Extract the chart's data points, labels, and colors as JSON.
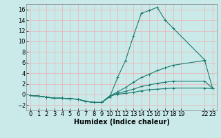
{
  "bg_color": "#caeaea",
  "grid_color": "#b0d8d8",
  "line_color": "#1a7a6e",
  "xlabel": "Humidex (Indice chaleur)",
  "xlabel_fontsize": 7,
  "tick_fontsize": 6,
  "ylim": [
    -3,
    17
  ],
  "xlim": [
    -0.5,
    23.5
  ],
  "yticks": [
    -2,
    0,
    2,
    4,
    6,
    8,
    10,
    12,
    14,
    16
  ],
  "xtick_positions": [
    0,
    1,
    2,
    3,
    4,
    5,
    6,
    7,
    8,
    9,
    10,
    11,
    12,
    13,
    14,
    15,
    16,
    17,
    18,
    19,
    22,
    23
  ],
  "xtick_labels": [
    "0",
    "1",
    "2",
    "3",
    "4",
    "5",
    "6",
    "7",
    "8",
    "9",
    "10",
    "11",
    "12",
    "13",
    "14",
    "15",
    "16",
    "17",
    "18",
    "19",
    "22",
    "23"
  ],
  "curves": [
    {
      "x": [
        0,
        1,
        2,
        3,
        4,
        5,
        6,
        7,
        8,
        9,
        10,
        11,
        12,
        13,
        14,
        15,
        16,
        17,
        18,
        22
      ],
      "y": [
        -0.2,
        -0.3,
        -0.5,
        -0.7,
        -0.7,
        -0.8,
        -0.9,
        -1.3,
        -1.5,
        -1.5,
        -0.5,
        3.2,
        6.4,
        11.0,
        15.3,
        15.8,
        16.4,
        14.0,
        12.5,
        6.5
      ]
    },
    {
      "x": [
        0,
        1,
        2,
        3,
        4,
        5,
        6,
        7,
        8,
        9,
        10,
        11,
        12,
        13,
        14,
        15,
        16,
        17,
        18,
        22,
        23
      ],
      "y": [
        -0.2,
        -0.3,
        -0.5,
        -0.7,
        -0.7,
        -0.8,
        -0.9,
        -1.3,
        -1.5,
        -1.5,
        -0.3,
        0.5,
        1.3,
        2.3,
        3.2,
        3.8,
        4.5,
        5.0,
        5.5,
        6.4,
        1.1
      ]
    },
    {
      "x": [
        0,
        1,
        2,
        3,
        4,
        5,
        6,
        7,
        8,
        9,
        10,
        11,
        12,
        13,
        14,
        15,
        16,
        17,
        18,
        22,
        23
      ],
      "y": [
        -0.2,
        -0.3,
        -0.5,
        -0.7,
        -0.7,
        -0.8,
        -0.9,
        -1.3,
        -1.5,
        -1.5,
        -0.3,
        0.2,
        0.6,
        1.0,
        1.5,
        1.8,
        2.1,
        2.3,
        2.5,
        2.5,
        1.1
      ]
    },
    {
      "x": [
        0,
        1,
        2,
        3,
        4,
        5,
        6,
        7,
        8,
        9,
        10,
        11,
        12,
        13,
        14,
        15,
        16,
        17,
        18,
        22,
        23
      ],
      "y": [
        -0.2,
        -0.3,
        -0.5,
        -0.7,
        -0.7,
        -0.8,
        -0.9,
        -1.3,
        -1.5,
        -1.5,
        -0.3,
        0.05,
        0.2,
        0.4,
        0.7,
        0.9,
        1.0,
        1.1,
        1.2,
        1.2,
        1.1
      ]
    }
  ]
}
